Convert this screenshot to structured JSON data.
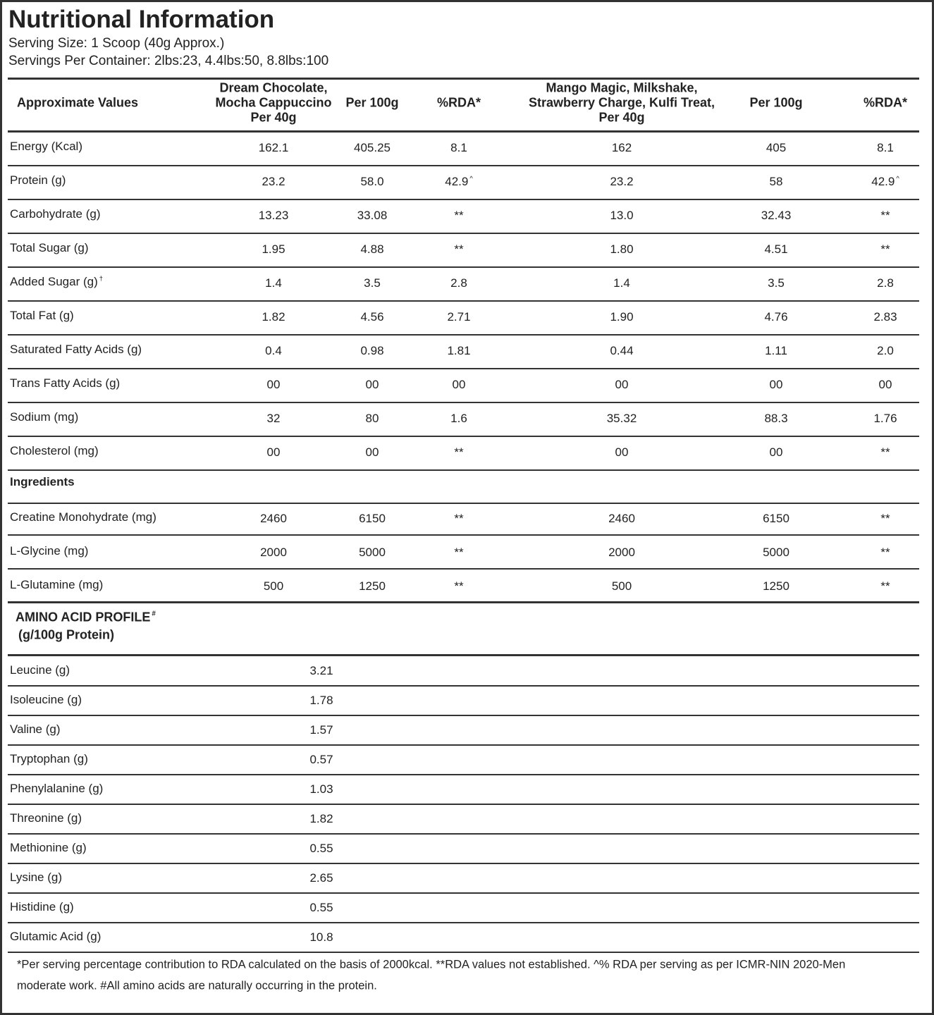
{
  "header": {
    "title": "Nutritional Information",
    "serving_size": "Serving Size: 1 Scoop (40g Approx.)",
    "servings_per_container": "Servings Per Container: 2lbs:23, 4.4lbs:50, 8.8lbs:100"
  },
  "table": {
    "columns": [
      "Approximate Values",
      "Dream Chocolate,\nMocha Cappuccino\nPer 40g",
      "Per 100g",
      "%RDA*",
      "Mango Magic, Milkshake,\nStrawberry Charge, Kulfi Treat,\nPer 40g",
      "Per 100g",
      "%RDA*"
    ],
    "rows": [
      {
        "label": "Energy (Kcal)",
        "values": [
          "162.1",
          "405.25",
          "8.1",
          "162",
          "405",
          "8.1"
        ]
      },
      {
        "label": "Protein (g)",
        "values": [
          "23.2",
          "58.0",
          {
            "text": "42.9",
            "sup": "^"
          },
          "23.2",
          "58",
          {
            "text": "42.9",
            "sup": "^"
          }
        ]
      },
      {
        "label": "Carbohydrate (g)",
        "values": [
          "13.23",
          "33.08",
          "**",
          "13.0",
          "32.43",
          "**"
        ]
      },
      {
        "label": "Total Sugar (g)",
        "values": [
          "1.95",
          "4.88",
          "**",
          "1.80",
          "4.51",
          "**"
        ]
      },
      {
        "label": {
          "text": "Added Sugar (g)",
          "sup": "†"
        },
        "values": [
          "1.4",
          "3.5",
          "2.8",
          "1.4",
          "3.5",
          "2.8"
        ]
      },
      {
        "label": "Total Fat (g)",
        "values": [
          "1.82",
          "4.56",
          "2.71",
          "1.90",
          "4.76",
          "2.83"
        ]
      },
      {
        "label": "Saturated Fatty Acids (g)",
        "values": [
          "0.4",
          "0.98",
          "1.81",
          "0.44",
          "1.11",
          "2.0"
        ]
      },
      {
        "label": "Trans Fatty Acids (g)",
        "values": [
          "00",
          "00",
          "00",
          "00",
          "00",
          "00"
        ]
      },
      {
        "label": "Sodium (mg)",
        "values": [
          "32",
          "80",
          "1.6",
          "35.32",
          "88.3",
          "1.76"
        ]
      },
      {
        "label": "Cholesterol (mg)",
        "values": [
          "00",
          "00",
          "**",
          "00",
          "00",
          "**"
        ]
      }
    ],
    "ingredients_heading": "Ingredients",
    "ingredients": [
      {
        "label": "Creatine Monohydrate (mg)",
        "values": [
          "2460",
          "6150",
          "**",
          "2460",
          "6150",
          "**"
        ]
      },
      {
        "label": "L-Glycine (mg)",
        "values": [
          "2000",
          "5000",
          "**",
          "2000",
          "5000",
          "**"
        ]
      },
      {
        "label": "L-Glutamine (mg)",
        "values": [
          "500",
          "1250",
          "**",
          "500",
          "1250",
          "**"
        ]
      }
    ]
  },
  "amino": {
    "title": {
      "text": "AMINO ACID PROFILE",
      "sup": "#"
    },
    "subtitle": "(g/100g Protein)",
    "rows": [
      {
        "label": "Leucine (g)",
        "value": "3.21"
      },
      {
        "label": "Isoleucine (g)",
        "value": "1.78"
      },
      {
        "label": "Valine (g)",
        "value": "1.57"
      },
      {
        "label": "Tryptophan (g)",
        "value": "0.57"
      },
      {
        "label": "Phenylalanine (g)",
        "value": "1.03"
      },
      {
        "label": "Threonine (g)",
        "value": "1.82"
      },
      {
        "label": "Methionine (g)",
        "value": "0.55"
      },
      {
        "label": "Lysine (g)",
        "value": "2.65"
      },
      {
        "label": "Histidine (g)",
        "value": "0.55"
      },
      {
        "label": "Glutamic Acid (g)",
        "value": "10.8"
      }
    ]
  },
  "footnote": [
    "*Per serving percentage contribution to RDA calculated on the basis of 2000kcal. **RDA values not established.  ^% RDA per serving as per ICMR-NIN 2020-Men",
    "moderate work. #All amino acids are naturally occurring in the protein."
  ]
}
